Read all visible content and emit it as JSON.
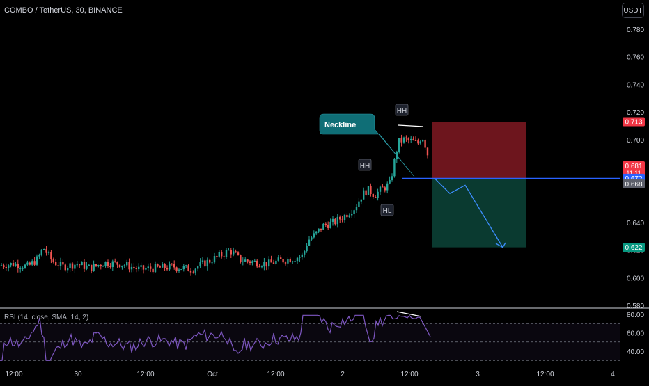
{
  "header": {
    "symbol": "COMBO / TetherUS, 30, BINANCE",
    "currency": "USDT"
  },
  "colors": {
    "up": "#26a69a",
    "down": "#ef5350",
    "rsi_line": "#7e57c2",
    "trend_line": "#2962ff",
    "stop_zone": "#801922",
    "target_zone": "#0b3d33",
    "callout": "#0f6e76"
  },
  "price_axis": {
    "ticks": [
      "0.780",
      "0.760",
      "0.740",
      "0.720",
      "0.700",
      "0.640",
      "0.620",
      "0.600",
      "0.580"
    ],
    "tick_values": [
      0.78,
      0.76,
      0.74,
      0.72,
      0.7,
      0.64,
      0.62,
      0.6,
      0.58
    ],
    "range": [
      0.58,
      0.79
    ]
  },
  "time_axis": {
    "ticks": [
      "12:00",
      "30",
      "12:00",
      "Oct",
      "12:00",
      "2",
      "12:00",
      "3",
      "12:00",
      "4"
    ]
  },
  "price_badges": [
    {
      "label": "0.713",
      "value": 0.713,
      "color": "#f23645"
    },
    {
      "label": "0.681",
      "sub": "11:11",
      "value": 0.681,
      "color": "#f23645"
    },
    {
      "label": "0.672",
      "value": 0.672,
      "color": "#2962ff"
    },
    {
      "label": "0.668",
      "value": 0.668,
      "color": "#5d606b"
    },
    {
      "label": "0.622",
      "value": 0.622,
      "color": "#089981"
    }
  ],
  "annotations": {
    "callout": "Neckline",
    "hh_labels": [
      "HH",
      "HH"
    ],
    "hl_label": "HL"
  },
  "rsi": {
    "label": "RSI (14, close, SMA, 14, 2)",
    "ticks": [
      "80.00",
      "60.00",
      "40.00"
    ],
    "tick_values": [
      80,
      60,
      40
    ],
    "bands": [
      70,
      50,
      30
    ],
    "range": [
      25,
      85
    ]
  },
  "chart_data": {
    "type": "candlestick",
    "title": "COMBO / TetherUS, 30, BINANCE",
    "x_label": "",
    "y_label": "",
    "y_range": [
      0.58,
      0.79
    ],
    "grid": false,
    "current_price": 0.681,
    "countdown": "11:11",
    "trade_setup": {
      "stop": 0.713,
      "entry": 0.672,
      "target": 0.622,
      "neckline": 0.668
    },
    "projected_path": [
      0.672,
      0.661,
      0.667,
      0.622
    ]
  }
}
